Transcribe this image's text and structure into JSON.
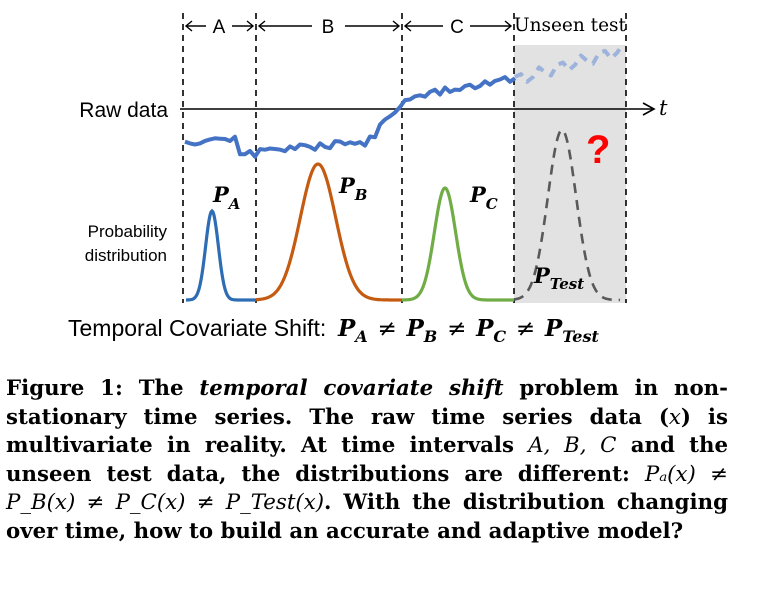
{
  "figure": {
    "segments": [
      "A",
      "B",
      "C",
      "Unseen test"
    ],
    "raw_data_label": "Raw data",
    "time_axis_label": "t",
    "prob_label": [
      "Probability",
      "distribution"
    ],
    "dist_labels": {
      "a": "A",
      "b": "B",
      "c": "C",
      "test": "Test"
    },
    "dist_symbol": "P",
    "question_mark": "?",
    "shift_text": "Temporal Covariate Shift:",
    "neq": "≠",
    "colors": {
      "raw": "#4472c4",
      "raw_unseen": "#9db3db",
      "dist_a": "#2e6db4",
      "dist_b": "#c55a11",
      "dist_c": "#70ad47",
      "dist_test": "#595959",
      "unseen_bg": "#e2e2e2",
      "question": "#ff0000"
    }
  },
  "caption": {
    "figure_label": "Figure 1:",
    "part1": "The",
    "emph": "temporal covariate shift",
    "part2": "problem in non-stationary time series. The raw time series data (",
    "x_var": "x",
    "part3": ") is multivariate in reality. At time intervals",
    "intervals": "A, B, C",
    "part4": "and the unseen test data, the distributions are different:",
    "math": "Pₐ(x) ≠ P_B(x) ≠ P_C(x) ≠ P_Test(x)",
    "math_a": "P",
    "part5": ". With the distribution changing over time, how to build an accurate and adaptive model?"
  }
}
